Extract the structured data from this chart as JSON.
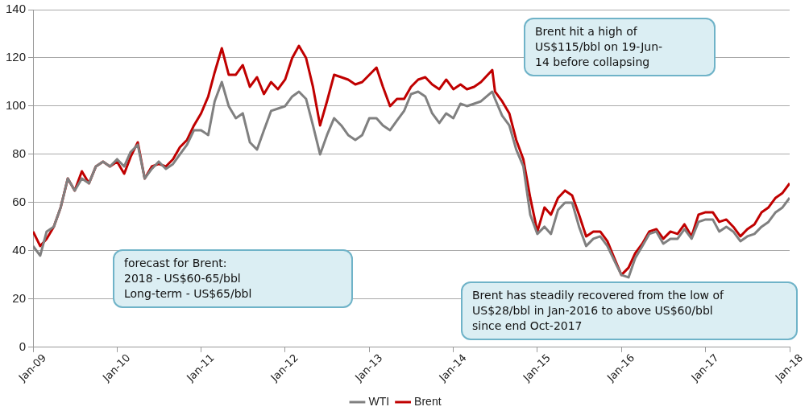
{
  "chart_data": {
    "type": "line",
    "x": [
      "2009-01",
      "2009-02",
      "2009-03",
      "2009-04",
      "2009-05",
      "2009-06",
      "2009-07",
      "2009-08",
      "2009-09",
      "2009-10",
      "2009-11",
      "2009-12",
      "2010-01",
      "2010-02",
      "2010-03",
      "2010-04",
      "2010-05",
      "2010-06",
      "2010-07",
      "2010-08",
      "2010-09",
      "2010-10",
      "2010-11",
      "2010-12",
      "2011-01",
      "2011-02",
      "2011-03",
      "2011-04",
      "2011-05",
      "2011-06",
      "2011-07",
      "2011-08",
      "2011-09",
      "2011-10",
      "2011-11",
      "2011-12",
      "2012-01",
      "2012-02",
      "2012-03",
      "2012-04",
      "2012-05",
      "2012-06",
      "2012-07",
      "2012-08",
      "2012-09",
      "2012-10",
      "2012-11",
      "2012-12",
      "2013-01",
      "2013-02",
      "2013-03",
      "2013-04",
      "2013-05",
      "2013-06",
      "2013-07",
      "2013-08",
      "2013-09",
      "2013-10",
      "2013-11",
      "2013-12",
      "2014-01",
      "2014-02",
      "2014-03",
      "2014-04",
      "2014-05",
      "2014-06-19",
      "2014-07",
      "2014-08",
      "2014-09",
      "2014-10",
      "2014-11",
      "2014-12",
      "2015-01",
      "2015-02",
      "2015-03",
      "2015-04",
      "2015-05",
      "2015-06",
      "2015-07",
      "2015-08",
      "2015-09",
      "2015-10",
      "2015-11",
      "2015-12",
      "2016-01",
      "2016-02",
      "2016-03",
      "2016-04",
      "2016-05",
      "2016-06",
      "2016-07",
      "2016-08",
      "2016-09",
      "2016-10",
      "2016-11",
      "2016-12",
      "2017-01",
      "2017-02",
      "2017-03",
      "2017-04",
      "2017-05",
      "2017-06",
      "2017-07",
      "2017-08",
      "2017-09",
      "2017-10",
      "2017-11",
      "2017-12",
      "2018-01"
    ],
    "series": [
      {
        "name": "Brent",
        "color": "#c00000",
        "values": [
          48,
          42,
          45,
          50,
          58,
          70,
          65,
          73,
          68,
          75,
          77,
          75,
          77,
          72,
          79,
          85,
          70,
          75,
          76,
          75,
          78,
          83,
          86,
          92,
          97,
          104,
          114,
          124,
          113,
          113,
          117,
          108,
          112,
          105,
          110,
          107,
          111,
          120,
          125,
          120,
          108,
          92,
          102,
          113,
          112,
          111,
          109,
          110,
          113,
          116,
          108,
          100,
          103,
          103,
          108,
          111,
          112,
          109,
          107,
          111,
          107,
          109,
          107,
          108,
          110,
          115,
          106,
          102,
          97,
          86,
          78,
          62,
          48,
          58,
          55,
          62,
          65,
          63,
          55,
          46,
          48,
          48,
          44,
          37,
          30,
          33,
          39,
          43,
          48,
          49,
          45,
          48,
          47,
          51,
          46,
          55,
          56,
          56,
          52,
          53,
          50,
          46,
          49,
          51,
          56,
          58,
          62,
          64,
          68
        ]
      },
      {
        "name": "WTI",
        "color": "#808080",
        "values": [
          42,
          38,
          48,
          50,
          58,
          70,
          65,
          70,
          68,
          75,
          77,
          75,
          78,
          75,
          81,
          84,
          70,
          74,
          77,
          74,
          76,
          80,
          84,
          90,
          90,
          88,
          102,
          110,
          100,
          95,
          97,
          85,
          82,
          90,
          98,
          99,
          100,
          104,
          106,
          103,
          92,
          80,
          88,
          95,
          92,
          88,
          86,
          88,
          95,
          95,
          92,
          90,
          94,
          98,
          105,
          106,
          104,
          97,
          93,
          97,
          95,
          101,
          100,
          101,
          102,
          106,
          103,
          96,
          92,
          82,
          75,
          55,
          47,
          50,
          47,
          57,
          60,
          60,
          50,
          42,
          45,
          46,
          42,
          36,
          30,
          29,
          37,
          42,
          47,
          48,
          43,
          45,
          45,
          49,
          45,
          52,
          53,
          53,
          48,
          50,
          48,
          44,
          46,
          47,
          50,
          52,
          56,
          58,
          62
        ]
      }
    ],
    "xlim": [
      "2009-01",
      "2018-01"
    ],
    "xticks": [
      {
        "value": "2009-01",
        "label": "Jan-09"
      },
      {
        "value": "2010-01",
        "label": "Jan-10"
      },
      {
        "value": "2011-01",
        "label": "Jan-11"
      },
      {
        "value": "2012-01",
        "label": "Jan-12"
      },
      {
        "value": "2013-01",
        "label": "Jan-13"
      },
      {
        "value": "2014-01",
        "label": "Jan-14"
      },
      {
        "value": "2015-01",
        "label": "Jan-15"
      },
      {
        "value": "2016-01",
        "label": "Jan-16"
      },
      {
        "value": "2017-01",
        "label": "Jan-17"
      },
      {
        "value": "2018-01",
        "label": "Jan-18"
      }
    ],
    "ylim": [
      0,
      140
    ],
    "yticks": [
      0,
      20,
      40,
      60,
      80,
      100,
      120,
      140
    ],
    "grid": "y",
    "legend": "bottom",
    "marker": "none",
    "line_style": "solid",
    "annotations": [
      "Brent hit a high of\nUS$115/bbl  on  19-Jun-\n14 before collapsing",
      "forecast for Brent:\n2018  - US$60-65/bbl\nLong-term  - US$65/bbl",
      "Brent has steadily recovered from the low of\nUS$28/bbl  in Jan-2016 to above US$60/bbl\nsince end Oct-2017"
    ]
  }
}
